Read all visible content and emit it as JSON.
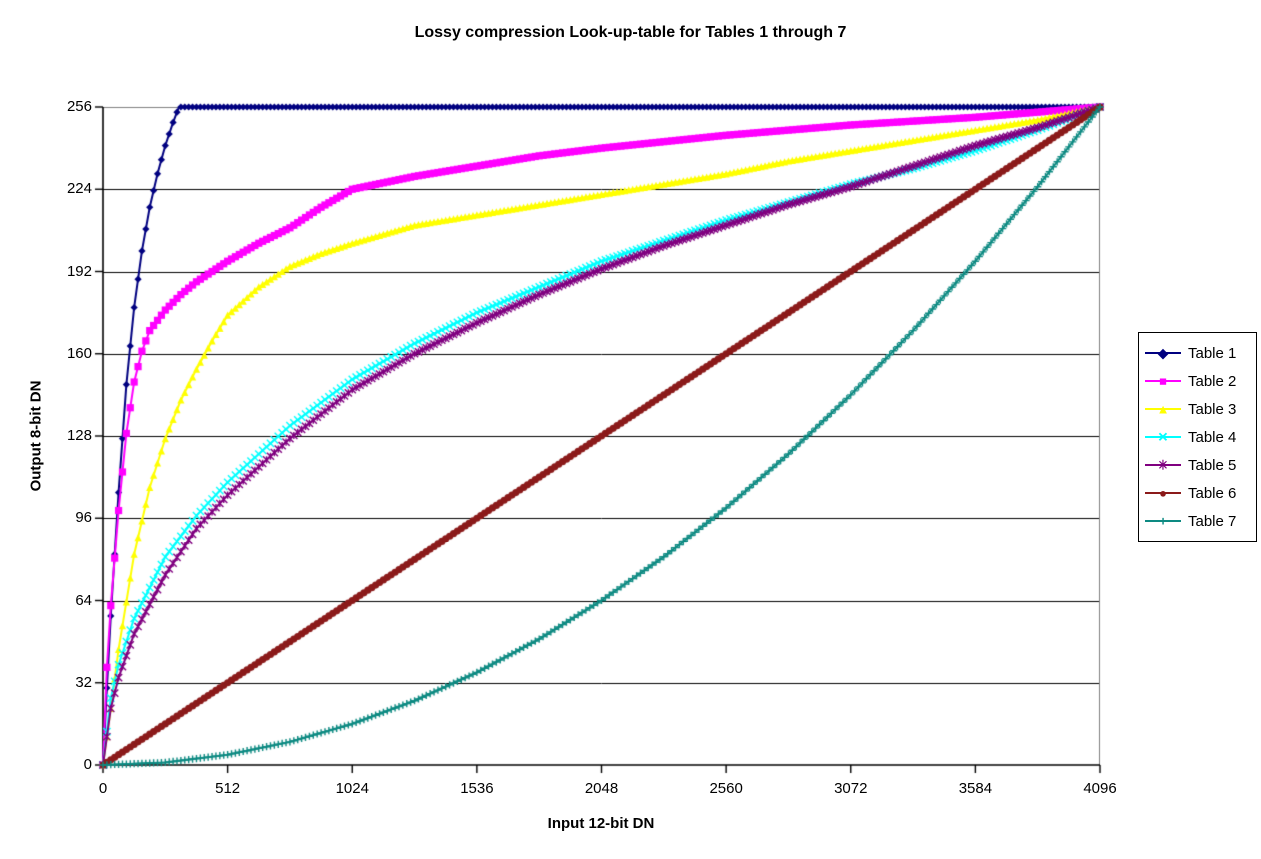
{
  "chart_data": {
    "type": "line",
    "title": "Lossy compression Look-up-table for Tables 1 through 7",
    "xlabel": "Input 12-bit DN",
    "ylabel": "Output 8-bit DN",
    "xlim": [
      0,
      4096
    ],
    "ylim": [
      0,
      256
    ],
    "x_ticks": [
      0,
      512,
      1024,
      1536,
      2048,
      2560,
      3072,
      3584,
      4096
    ],
    "y_ticks": [
      0,
      32,
      64,
      96,
      128,
      160,
      192,
      224,
      256
    ],
    "grid": "horizontal",
    "legend_position": "right",
    "background_color": "#FFFFFF",
    "gridline_color": "#000000",
    "border_color": "#808080",
    "marker_step": 16,
    "series": [
      {
        "name": "Table 1",
        "color": "#000080",
        "marker": "diamond",
        "points": [
          [
            0,
            0
          ],
          [
            16,
            30
          ],
          [
            32,
            58
          ],
          [
            64,
            106
          ],
          [
            96,
            148
          ],
          [
            128,
            178
          ],
          [
            160,
            200
          ],
          [
            192,
            217
          ],
          [
            224,
            230
          ],
          [
            256,
            241
          ],
          [
            288,
            250
          ],
          [
            312,
            256
          ],
          [
            4096,
            256
          ]
        ]
      },
      {
        "name": "Table 2",
        "color": "#FF00FF",
        "marker": "square",
        "points": [
          [
            0,
            0
          ],
          [
            16,
            38
          ],
          [
            32,
            62
          ],
          [
            64,
            99
          ],
          [
            96,
            129
          ],
          [
            128,
            149
          ],
          [
            160,
            161
          ],
          [
            192,
            169
          ],
          [
            256,
            177
          ],
          [
            320,
            183
          ],
          [
            384,
            188
          ],
          [
            512,
            196
          ],
          [
            640,
            203
          ],
          [
            768,
            209
          ],
          [
            896,
            217
          ],
          [
            1024,
            224
          ],
          [
            1280,
            229
          ],
          [
            1536,
            233
          ],
          [
            1792,
            237
          ],
          [
            2048,
            240
          ],
          [
            2560,
            245
          ],
          [
            3072,
            249
          ],
          [
            3584,
            252
          ],
          [
            4096,
            256
          ]
        ]
      },
      {
        "name": "Table 3",
        "color": "#FFFF00",
        "marker": "triangle",
        "points": [
          [
            0,
            0
          ],
          [
            32,
            22
          ],
          [
            64,
            45
          ],
          [
            128,
            82
          ],
          [
            192,
            108
          ],
          [
            256,
            127
          ],
          [
            320,
            142
          ],
          [
            384,
            154
          ],
          [
            448,
            165
          ],
          [
            512,
            175
          ],
          [
            640,
            186
          ],
          [
            768,
            194
          ],
          [
            896,
            199
          ],
          [
            1024,
            203
          ],
          [
            1280,
            210
          ],
          [
            1536,
            214
          ],
          [
            1792,
            218
          ],
          [
            2048,
            222
          ],
          [
            2304,
            226
          ],
          [
            2560,
            230
          ],
          [
            2816,
            235
          ],
          [
            3072,
            239
          ],
          [
            3328,
            243
          ],
          [
            3584,
            247
          ],
          [
            3840,
            251
          ],
          [
            4096,
            256
          ]
        ]
      },
      {
        "name": "Table 4",
        "color": "#00FFFF",
        "marker": "x",
        "points": [
          [
            0,
            0
          ],
          [
            32,
            26
          ],
          [
            64,
            39
          ],
          [
            128,
            57
          ],
          [
            256,
            81
          ],
          [
            384,
            97
          ],
          [
            512,
            110
          ],
          [
            768,
            132
          ],
          [
            1024,
            150
          ],
          [
            1280,
            164
          ],
          [
            1536,
            176
          ],
          [
            1792,
            186
          ],
          [
            2048,
            196
          ],
          [
            2304,
            204
          ],
          [
            2560,
            212
          ],
          [
            2816,
            219
          ],
          [
            3072,
            226
          ],
          [
            3328,
            232
          ],
          [
            3584,
            239
          ],
          [
            3840,
            247
          ],
          [
            4096,
            256
          ]
        ]
      },
      {
        "name": "Table 5",
        "color": "#800080",
        "marker": "star",
        "points": [
          [
            0,
            0
          ],
          [
            32,
            22
          ],
          [
            64,
            34
          ],
          [
            128,
            51
          ],
          [
            256,
            74
          ],
          [
            384,
            92
          ],
          [
            512,
            105
          ],
          [
            768,
            127
          ],
          [
            1024,
            146
          ],
          [
            1280,
            160
          ],
          [
            1536,
            172
          ],
          [
            1792,
            183
          ],
          [
            2048,
            193
          ],
          [
            2304,
            202
          ],
          [
            2560,
            210
          ],
          [
            2816,
            218
          ],
          [
            3072,
            225
          ],
          [
            3328,
            233
          ],
          [
            3584,
            241
          ],
          [
            3840,
            248
          ],
          [
            4096,
            256
          ]
        ]
      },
      {
        "name": "Table 6",
        "color": "#8B1A1A",
        "marker": "circle",
        "points": [
          [
            0,
            0
          ],
          [
            512,
            32
          ],
          [
            1024,
            64
          ],
          [
            1536,
            96
          ],
          [
            2048,
            128
          ],
          [
            2560,
            160
          ],
          [
            3072,
            192
          ],
          [
            3584,
            224
          ],
          [
            4096,
            256
          ]
        ]
      },
      {
        "name": "Table 7",
        "color": "#0D8A82",
        "marker": "plus",
        "points": [
          [
            0,
            0
          ],
          [
            256,
            1
          ],
          [
            512,
            4
          ],
          [
            768,
            9
          ],
          [
            1024,
            16
          ],
          [
            1280,
            25
          ],
          [
            1536,
            36
          ],
          [
            1792,
            49
          ],
          [
            2048,
            64
          ],
          [
            2304,
            81
          ],
          [
            2560,
            100
          ],
          [
            2816,
            121
          ],
          [
            3072,
            144
          ],
          [
            3328,
            169
          ],
          [
            3584,
            196
          ],
          [
            3840,
            225
          ],
          [
            4096,
            256
          ]
        ]
      }
    ]
  }
}
